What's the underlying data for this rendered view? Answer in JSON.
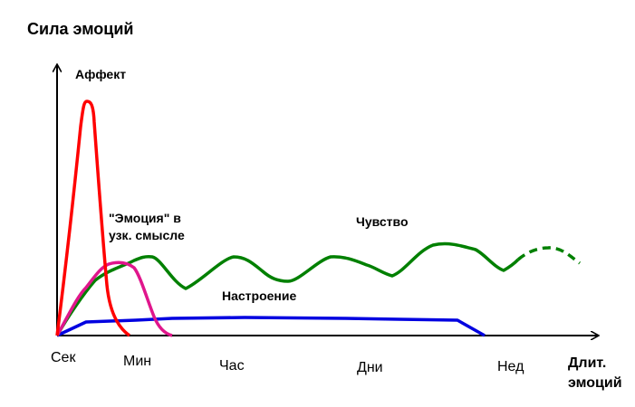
{
  "title": "Сила эмоций",
  "y_axis_label": "Аффект",
  "x_axis_label": [
    "Длит.",
    "эмоций"
  ],
  "x_ticks": [
    "Сек",
    "Мин",
    "Час",
    "Дни",
    "Нед"
  ],
  "curves": [
    {
      "key": "affect",
      "name": "Аффект",
      "color": "#ff0000"
    },
    {
      "key": "emotion_narrow",
      "name": "\"Эмоция\" в узк. смысле",
      "label_lines": [
        "\"Эмоция\" в",
        "узк. смысле"
      ],
      "color": "#e0168c"
    },
    {
      "key": "feeling",
      "name": "Чувство",
      "color": "#008000"
    },
    {
      "key": "mood",
      "name": "Настроение",
      "color": "#0000e0"
    }
  ],
  "colors": {
    "axes": "#000000",
    "background": "#ffffff"
  }
}
